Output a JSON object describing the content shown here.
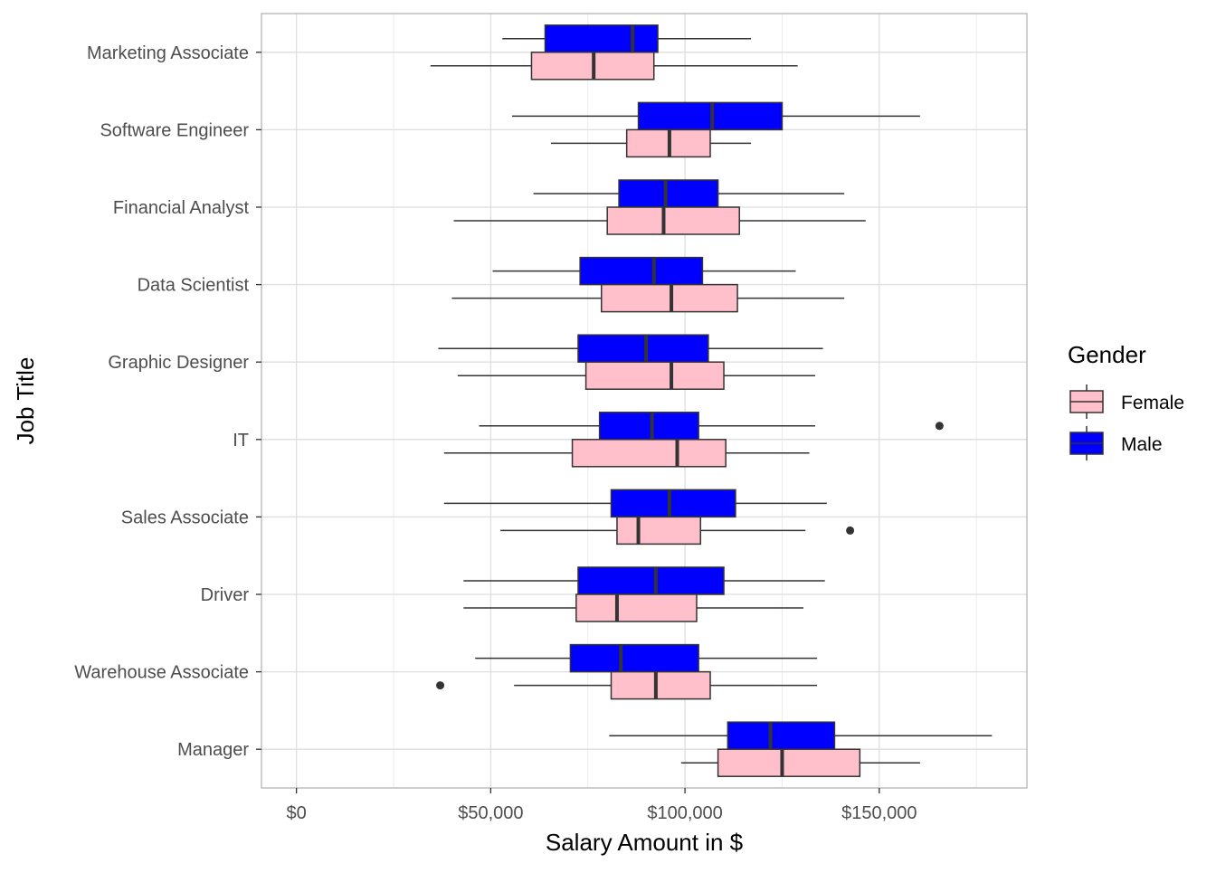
{
  "chart_data": {
    "type": "boxplot",
    "orientation": "horizontal",
    "title": "",
    "xlabel": "Salary Amount in $",
    "ylabel": "Job Title",
    "xlim": [
      -9000,
      188000
    ],
    "x_ticks": [
      {
        "value": 0,
        "label": "$0"
      },
      {
        "value": 50000,
        "label": "$50,000"
      },
      {
        "value": 100000,
        "label": "$100,000"
      },
      {
        "value": 150000,
        "label": "$150,000"
      }
    ],
    "x_minor_ticks": [
      25000,
      75000,
      125000,
      175000
    ],
    "grid": true,
    "categories": [
      "Marketing Associate",
      "Software Engineer",
      "Financial Analyst",
      "Data Scientist",
      "Graphic Designer",
      "IT",
      "Sales Associate",
      "Driver",
      "Warehouse Associate",
      "Manager"
    ],
    "legend": {
      "title": "Gender",
      "position": "right",
      "entries": [
        {
          "label": "Female",
          "color": "#ffc0cb"
        },
        {
          "label": "Male",
          "color": "#0000ff"
        }
      ]
    },
    "series": [
      {
        "name": "Male",
        "color": "#0000ff",
        "boxes": [
          {
            "category": "Marketing Associate",
            "whisker_low": 53000,
            "q1": 64000,
            "median": 86500,
            "q3": 93000,
            "whisker_high": 117000,
            "outliers": []
          },
          {
            "category": "Software Engineer",
            "whisker_low": 55500,
            "q1": 88000,
            "median": 107000,
            "q3": 125000,
            "whisker_high": 160500,
            "outliers": []
          },
          {
            "category": "Financial Analyst",
            "whisker_low": 61000,
            "q1": 83000,
            "median": 95000,
            "q3": 108500,
            "whisker_high": 141000,
            "outliers": []
          },
          {
            "category": "Data Scientist",
            "whisker_low": 50500,
            "q1": 73000,
            "median": 92000,
            "q3": 104500,
            "whisker_high": 128500,
            "outliers": []
          },
          {
            "category": "Graphic Designer",
            "whisker_low": 36500,
            "q1": 72500,
            "median": 90000,
            "q3": 106000,
            "whisker_high": 135500,
            "outliers": []
          },
          {
            "category": "IT",
            "whisker_low": 47000,
            "q1": 78000,
            "median": 91500,
            "q3": 103500,
            "whisker_high": 133500,
            "outliers": [
              165500
            ]
          },
          {
            "category": "Sales Associate",
            "whisker_low": 38000,
            "q1": 81000,
            "median": 96000,
            "q3": 113000,
            "whisker_high": 136500,
            "outliers": []
          },
          {
            "category": "Driver",
            "whisker_low": 43000,
            "q1": 72500,
            "median": 92500,
            "q3": 110000,
            "whisker_high": 136000,
            "outliers": []
          },
          {
            "category": "Warehouse Associate",
            "whisker_low": 46000,
            "q1": 70500,
            "median": 83500,
            "q3": 103500,
            "whisker_high": 134000,
            "outliers": []
          },
          {
            "category": "Manager",
            "whisker_low": 80500,
            "q1": 111000,
            "median": 122000,
            "q3": 138500,
            "whisker_high": 179000,
            "outliers": []
          }
        ]
      },
      {
        "name": "Female",
        "color": "#ffc0cb",
        "boxes": [
          {
            "category": "Marketing Associate",
            "whisker_low": 34500,
            "q1": 60500,
            "median": 76500,
            "q3": 92000,
            "whisker_high": 129000,
            "outliers": []
          },
          {
            "category": "Software Engineer",
            "whisker_low": 65500,
            "q1": 85000,
            "median": 96000,
            "q3": 106500,
            "whisker_high": 117000,
            "outliers": []
          },
          {
            "category": "Financial Analyst",
            "whisker_low": 40500,
            "q1": 80000,
            "median": 94500,
            "q3": 114000,
            "whisker_high": 146500,
            "outliers": []
          },
          {
            "category": "Data Scientist",
            "whisker_low": 40000,
            "q1": 78500,
            "median": 96500,
            "q3": 113500,
            "whisker_high": 141000,
            "outliers": []
          },
          {
            "category": "Graphic Designer",
            "whisker_low": 41500,
            "q1": 74500,
            "median": 96500,
            "q3": 110000,
            "whisker_high": 133500,
            "outliers": []
          },
          {
            "category": "IT",
            "whisker_low": 38000,
            "q1": 71000,
            "median": 98000,
            "q3": 110500,
            "whisker_high": 132000,
            "outliers": []
          },
          {
            "category": "Sales Associate",
            "whisker_low": 52500,
            "q1": 82500,
            "median": 88000,
            "q3": 104000,
            "whisker_high": 131000,
            "outliers": [
              142500
            ]
          },
          {
            "category": "Driver",
            "whisker_low": 43000,
            "q1": 72000,
            "median": 82500,
            "q3": 103000,
            "whisker_high": 130500,
            "outliers": []
          },
          {
            "category": "Warehouse Associate",
            "whisker_low": 56000,
            "q1": 81000,
            "median": 92500,
            "q3": 106500,
            "whisker_high": 134000,
            "outliers": [
              37000
            ]
          },
          {
            "category": "Manager",
            "whisker_low": 99000,
            "q1": 108500,
            "median": 125000,
            "q3": 145000,
            "whisker_high": 160500,
            "outliers": []
          }
        ]
      }
    ]
  }
}
